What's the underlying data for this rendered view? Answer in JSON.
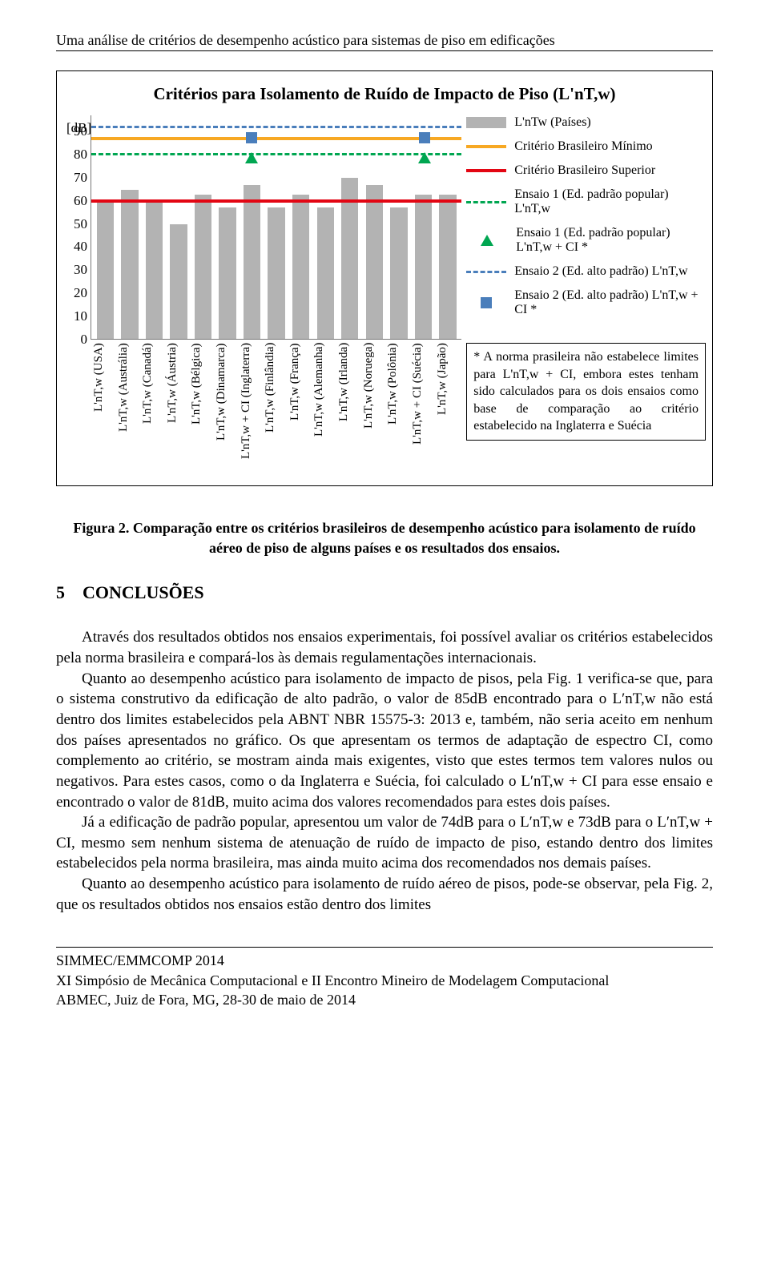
{
  "header": {
    "title": "Uma análise de critérios de desempenho acústico para sistemas de piso em edificações"
  },
  "chart": {
    "title": "Critérios para Isolamento de Ruído de Impacto de Piso (L'nT,w)",
    "ylabel": "[dB]",
    "ylim": [
      0,
      90
    ],
    "ytick_step": 10,
    "ytick_labels": [
      "0",
      "10",
      "20",
      "30",
      "40",
      "50",
      "60",
      "70",
      "80",
      "90"
    ],
    "bar_color": "#b3b3b3",
    "categories": [
      "L'nT,w (USA)",
      "L'nT,w (Austrália)",
      "L'nT,w (Canadá)",
      "L'nT,w (Áustria)",
      "L'nT,w (Bélgica)",
      "L'nT,w (Dinamarca)",
      "L'nT,w + CI (Inglaterra)",
      "L'nT,w (Finlândia)",
      "L'nT,w (França)",
      "L'nT,w (Alemanha)",
      "L'nT,w (Irlanda)",
      "L'nT,w (Noruega)",
      "L'nT,w (Polônia)",
      "L'nT,w + CI (Suécia)",
      "L'nT,w (Japão)"
    ],
    "values": [
      55,
      60,
      55,
      46,
      58,
      53,
      62,
      53,
      58,
      53,
      65,
      62,
      53,
      58,
      58
    ],
    "value_japao_extra": 60,
    "lines": {
      "crit_min": {
        "value": 80,
        "color": "#f7a823",
        "width": 4
      },
      "crit_sup": {
        "value": 55,
        "color": "#e30613",
        "width": 4
      },
      "ensaio1": {
        "value": 74,
        "color": "#00a651",
        "style": "dashed"
      },
      "ensaio2": {
        "value": 85,
        "color": "#4a7ebb",
        "style": "dashed"
      }
    },
    "markers": {
      "ensaio1_ci": [
        {
          "xi": 6,
          "y": 73
        },
        {
          "xi": 13,
          "y": 73
        }
      ],
      "ensaio2_ci": [
        {
          "xi": 6,
          "y": 81
        },
        {
          "xi": 13,
          "y": 81
        }
      ],
      "tri_color": "#00a651",
      "sq_color": "#4a7ebb"
    },
    "legend": [
      {
        "kind": "box",
        "color": "#b3b3b3",
        "label": "L'nTw (Países)"
      },
      {
        "kind": "line",
        "color": "#f7a823",
        "label": "Critério Brasileiro Mínimo"
      },
      {
        "kind": "line",
        "color": "#e30613",
        "label": "Critério Brasileiro Superior"
      },
      {
        "kind": "dash",
        "color": "#00a651",
        "label": "Ensaio 1 (Ed. padrão popular) L'nT,w"
      },
      {
        "kind": "tri",
        "color": "#00a651",
        "label": "Ensaio 1 (Ed. padrão popular) L'nT,w + CI *"
      },
      {
        "kind": "dash",
        "color": "#4a7ebb",
        "label": "Ensaio 2 (Ed. alto padrão) L'nT,w"
      },
      {
        "kind": "sq",
        "color": "#4a7ebb",
        "label": "Ensaio 2 (Ed. alto padrão) L'nT,w + CI *"
      }
    ],
    "note": "* A norma prasileira não estabelece limites para L'nT,w + CI, embora estes tenham sido calculados para os dois ensaios como base de comparação ao critério estabelecido na Inglaterra e Suécia"
  },
  "figure_caption": "Figura 2. Comparação entre os critérios brasileiros de desempenho acústico para isolamento de ruído aéreo de piso de alguns países e os resultados dos ensaios.",
  "section": {
    "num": "5",
    "title": "CONCLUSÕES"
  },
  "paragraphs": {
    "p1": "Através dos resultados obtidos nos ensaios experimentais, foi possível avaliar os critérios estabelecidos pela norma brasileira e compará-los às demais regulamentações internacionais.",
    "p2": "Quanto ao desempenho acústico para isolamento de impacto de pisos, pela Fig. 1 verifica-se que, para o sistema construtivo da edificação de alto padrão, o valor de 85dB encontrado para o L′nT,w não está dentro dos limites estabelecidos pela ABNT NBR 15575-3: 2013 e, também, não seria aceito em nenhum dos países apresentados no gráfico. Os que apresentam os termos de adaptação de espectro CI, como complemento ao critério, se mostram ainda mais exigentes, visto que estes termos tem valores nulos ou negativos. Para estes casos, como o da Inglaterra e Suécia, foi calculado o L′nT,w + CI para esse ensaio e encontrado o valor de 81dB, muito acima dos valores recomendados para estes dois países.",
    "p3": "Já a edificação de padrão popular, apresentou um valor de 74dB para o L′nT,w e 73dB para o L′nT,w + CI, mesmo sem nenhum sistema de atenuação de ruído de impacto de piso, estando dentro dos limites estabelecidos pela norma brasileira, mas ainda muito acima dos recomendados nos demais países.",
    "p4": "Quanto ao desempenho acústico para isolamento de ruído aéreo de pisos, pode-se observar, pela Fig. 2, que os resultados obtidos nos ensaios estão dentro dos limites"
  },
  "footer": {
    "line1": "SIMMEC/EMMCOMP 2014",
    "line2": "XI Simpósio de Mecânica Computacional  e II Encontro Mineiro de Modelagem Computacional",
    "line3": "ABMEC, Juiz de Fora, MG, 28-30 de maio de 2014"
  }
}
